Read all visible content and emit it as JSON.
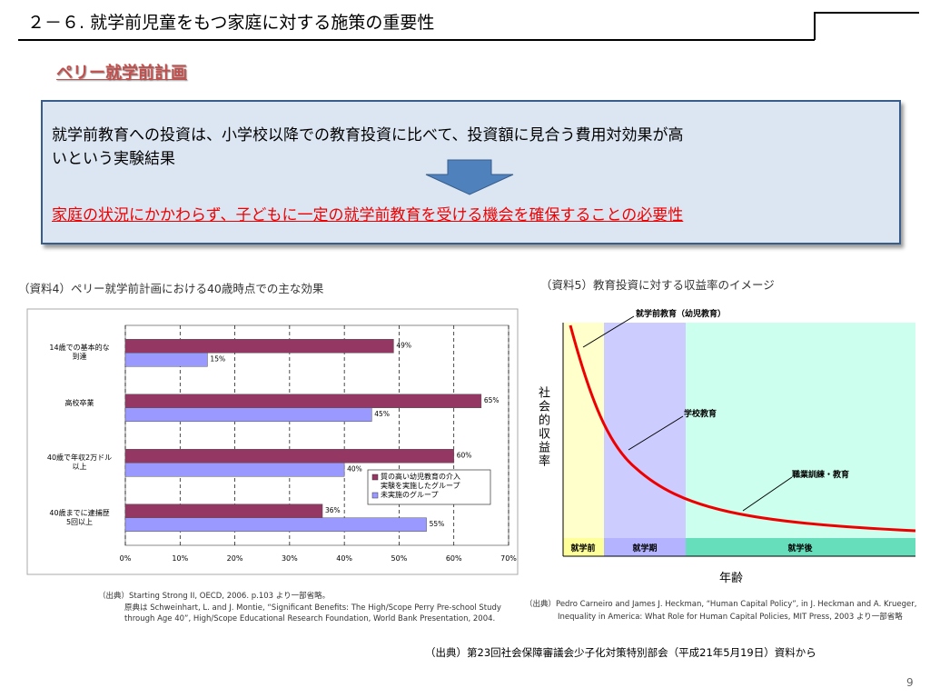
{
  "header": {
    "title": "２－６. 就学前児童をもつ家庭に対する施策の重要性",
    "subtitle": "ペリー就学前計画"
  },
  "box": {
    "lines": [
      "就学前教育への投資は、小学校以降での教育投資に比べて、投資額に見合う費用対効果が高",
      "いという実験結果"
    ],
    "conclusion": "家庭の状況にかかわらず、子どもに一定の就学前教育を受ける機会を確保することの必要性"
  },
  "chart_data": {
    "type": "bar",
    "orientation": "horizontal",
    "title": "（資料4）ペリー就学前計画における40歳時点での主な効果",
    "categories": [
      "14歳での基本的な\n到達",
      "高校卒業",
      "40歳で年収2万ドル\n以上",
      "40歳までに逮捕歴\n5回以上"
    ],
    "series": [
      {
        "name": "質の高い幼児教育の介入\n実験を実施したグループ",
        "color": "#953763",
        "values": [
          49,
          65,
          60,
          36
        ],
        "value_labels": [
          "49%",
          "65%",
          "60%",
          "36%"
        ]
      },
      {
        "name": "未実施のグループ",
        "color": "#9999ff",
        "values": [
          15,
          45,
          40,
          55
        ],
        "value_labels": [
          "15%",
          "45%",
          "40%",
          "55%"
        ]
      }
    ],
    "xlim": [
      0,
      70
    ],
    "xticks": [
      {
        "value": 0,
        "label": "0%"
      },
      {
        "value": 10,
        "label": "10%"
      },
      {
        "value": 20,
        "label": "20%"
      },
      {
        "value": 30,
        "label": "30%"
      },
      {
        "value": 40,
        "label": "40%"
      },
      {
        "value": 50,
        "label": "50%"
      },
      {
        "value": 60,
        "label": "60%"
      },
      {
        "value": 70,
        "label": "70%"
      }
    ],
    "grid": true,
    "legend": "lower right",
    "source": [
      "（出典）Starting Strong II, OECD, 2006. p.103 より一部省略。",
      "原典は Schweinhart, L. and J. Montie, “Significant Benefits: The High/Scope Perry Pre-school Study",
      "through Age 40”, High/Scope Educational Research Foundation, World Bank Presentation, 2004."
    ]
  },
  "figure5": {
    "title": "（資料5）教育投資に対する収益率のイメージ",
    "y_label": "社会的収益率",
    "x_label": "年齢",
    "phases": [
      "就学前",
      "就学期",
      "就学後"
    ],
    "annotations": [
      "就学前教育（幼児教育）",
      "学校教育",
      "職業訓練・教育"
    ],
    "source": [
      "（出典）Pedro Carneiro and James J. Heckman, “Human Capital Policy”, in J. Heckman and A. Krueger,",
      "Inequality in America: What Role for Human Capital Policies, MIT Press, 2003 より一部省略"
    ]
  },
  "footer": {
    "source": "（出典）第23回社会保障審議会少子化対策特別部会（平成21年5月19日）資料から",
    "page_number": "9"
  }
}
